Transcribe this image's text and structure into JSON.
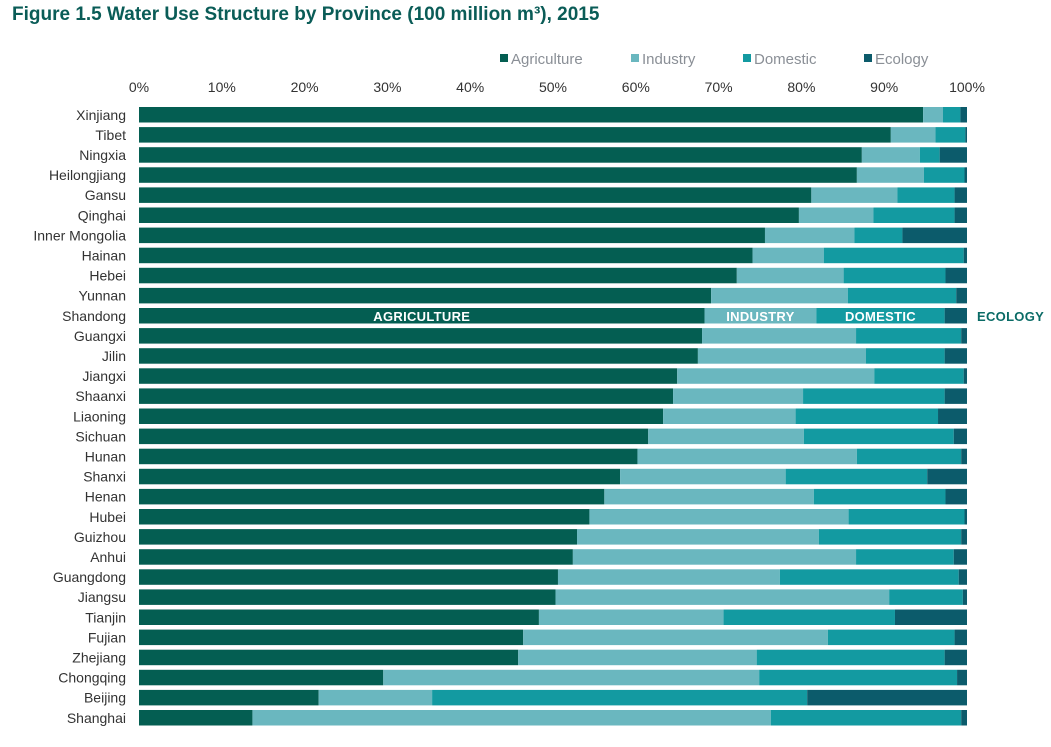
{
  "chart_data": {
    "type": "bar",
    "orientation": "horizontal",
    "stacked": true,
    "title": "Figure 1.5 Water Use Structure by Province (100 million m³), 2015",
    "legend_position": "top-right",
    "x_ticks": [
      "0%",
      "10%",
      "20%",
      "30%",
      "40%",
      "50%",
      "60%",
      "70%",
      "80%",
      "90%",
      "100%"
    ],
    "xlim": [
      0,
      100
    ],
    "grid": false,
    "categories": [
      "Xinjiang",
      "Tibet",
      "Ningxia",
      "Heilongjiang",
      "Gansu",
      "Qinghai",
      "Inner Mongolia",
      "Hainan",
      "Hebei",
      "Yunnan",
      "Shandong",
      "Guangxi",
      "Jilin",
      "Jiangxi",
      "Shaanxi",
      "Liaoning",
      "Sichuan",
      "Hunan",
      "Shanxi",
      "Henan",
      "Hubei",
      "Guizhou",
      "Anhui",
      "Guangdong",
      "Jiangsu",
      "Tianjin",
      "Fujian",
      "Zhejiang",
      "Chongqing",
      "Beijing",
      "Shanghai"
    ],
    "series": [
      {
        "name": "Agriculture",
        "color": "#045e52",
        "values": [
          94.7,
          90.8,
          87.3,
          86.7,
          81.2,
          79.7,
          75.6,
          74.1,
          72.2,
          69.1,
          68.3,
          68.0,
          67.5,
          65.0,
          64.5,
          63.3,
          61.5,
          60.2,
          58.1,
          56.2,
          54.4,
          52.9,
          52.4,
          50.6,
          50.3,
          48.3,
          46.4,
          45.8,
          29.5,
          21.7,
          13.7
        ]
      },
      {
        "name": "Industry",
        "color": "#6ab7bf",
        "values": [
          2.4,
          5.4,
          7.0,
          8.1,
          10.4,
          9.0,
          10.8,
          8.6,
          12.9,
          16.5,
          13.5,
          18.6,
          20.3,
          23.8,
          15.7,
          16.0,
          18.8,
          26.5,
          20.0,
          25.3,
          31.3,
          29.2,
          34.2,
          26.8,
          40.3,
          22.3,
          36.8,
          28.8,
          45.4,
          13.7,
          62.6
        ]
      },
      {
        "name": "Domestic",
        "color": "#139aa1",
        "values": [
          2.1,
          3.6,
          2.4,
          4.9,
          6.9,
          9.8,
          5.8,
          16.9,
          12.3,
          13.1,
          15.5,
          12.7,
          9.5,
          10.8,
          17.1,
          17.2,
          18.1,
          12.6,
          17.1,
          15.9,
          14.0,
          17.2,
          11.8,
          21.6,
          8.9,
          20.7,
          15.3,
          22.7,
          23.9,
          45.3,
          23.0
        ]
      },
      {
        "name": "Ecology",
        "color": "#0c5b6b",
        "values": [
          0.8,
          0.2,
          3.3,
          0.3,
          1.5,
          1.5,
          7.8,
          0.4,
          2.6,
          1.3,
          2.7,
          0.7,
          2.7,
          0.4,
          2.7,
          3.5,
          1.6,
          0.7,
          4.8,
          2.6,
          0.3,
          0.7,
          1.6,
          1.0,
          0.5,
          8.7,
          1.5,
          2.7,
          1.2,
          19.3,
          0.7
        ]
      }
    ],
    "annotations": {
      "row": "Shandong",
      "labels": [
        "AGRICULTURE",
        "INDUSTRY",
        "DOMESTIC",
        "ECOLOGY"
      ]
    }
  }
}
